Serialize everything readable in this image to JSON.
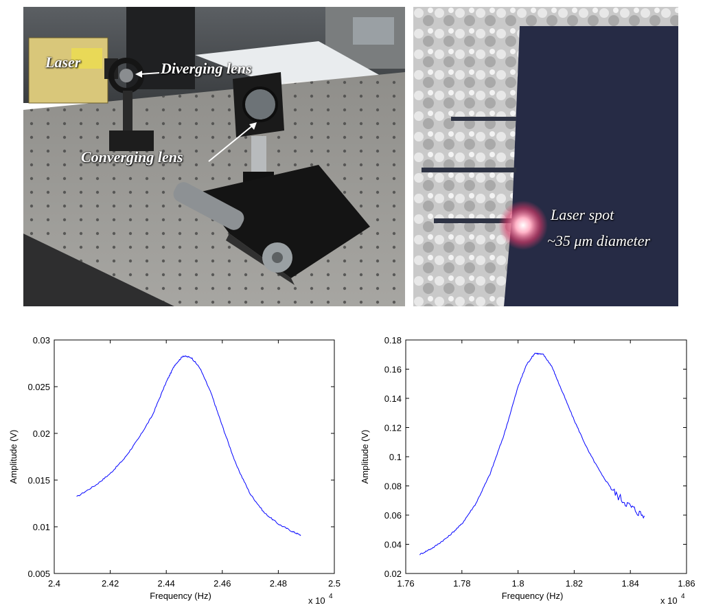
{
  "photos": {
    "left": {
      "captions": {
        "laser": "Laser",
        "diverging": "Diverging lens",
        "converging": "Converging lens"
      }
    },
    "right": {
      "captions": {
        "spot_line1": "Laser spot",
        "spot_line2": "~35 μm diameter"
      }
    }
  },
  "chart_data": [
    {
      "type": "line",
      "title": "",
      "xlabel": "Frequency (Hz)",
      "ylabel": "Amplitude (V)",
      "x_multiplier": "x 10",
      "x_exponent": "4",
      "xlim": [
        2.4,
        2.5
      ],
      "ylim": [
        0.005,
        0.03
      ],
      "xticks": [
        2.4,
        2.42,
        2.44,
        2.46,
        2.48,
        2.5
      ],
      "xtick_labels": [
        "2.4",
        "2.42",
        "2.44",
        "2.46",
        "2.48",
        "2.5"
      ],
      "yticks": [
        0.005,
        0.01,
        0.015,
        0.02,
        0.025,
        0.03
      ],
      "ytick_labels": [
        "0.005",
        "0.01",
        "0.015",
        "0.02",
        "0.025",
        "0.03"
      ],
      "color": "#0000ff",
      "grid": false,
      "series": [
        {
          "x": [
            2.408,
            2.415,
            2.42,
            2.425,
            2.43,
            2.435,
            2.44,
            2.443,
            2.446,
            2.449,
            2.452,
            2.456,
            2.46,
            2.465,
            2.47,
            2.475,
            2.48,
            2.485,
            2.488
          ],
          "y": [
            0.0132,
            0.0145,
            0.0157,
            0.0173,
            0.0194,
            0.0219,
            0.0255,
            0.0273,
            0.0283,
            0.0281,
            0.027,
            0.0243,
            0.0208,
            0.0166,
            0.0135,
            0.0115,
            0.0103,
            0.0095,
            0.0091
          ]
        }
      ]
    },
    {
      "type": "line",
      "title": "",
      "xlabel": "Frequency (Hz)",
      "ylabel": "Amplitude (V)",
      "x_multiplier": "x 10",
      "x_exponent": "4",
      "xlim": [
        1.76,
        1.86
      ],
      "ylim": [
        0.02,
        0.18
      ],
      "xticks": [
        1.76,
        1.78,
        1.8,
        1.82,
        1.84,
        1.86
      ],
      "xtick_labels": [
        "1.76",
        "1.78",
        "1.8",
        "1.82",
        "1.84",
        "1.86"
      ],
      "yticks": [
        0.02,
        0.04,
        0.06,
        0.08,
        0.1,
        0.12,
        0.14,
        0.16,
        0.18
      ],
      "ytick_labels": [
        "0.02",
        "0.04",
        "0.06",
        "0.08",
        "0.1",
        "0.12",
        "0.14",
        "0.16",
        "0.18"
      ],
      "color": "#0000ff",
      "grid": false,
      "series": [
        {
          "x": [
            1.765,
            1.77,
            1.775,
            1.78,
            1.785,
            1.79,
            1.795,
            1.8,
            1.803,
            1.806,
            1.809,
            1.812,
            1.815,
            1.82,
            1.825,
            1.83,
            1.835,
            1.84,
            1.845
          ],
          "y": [
            0.033,
            0.038,
            0.045,
            0.054,
            0.068,
            0.088,
            0.115,
            0.148,
            0.163,
            0.171,
            0.17,
            0.162,
            0.148,
            0.125,
            0.104,
            0.087,
            0.074,
            0.066,
            0.059
          ]
        }
      ]
    }
  ]
}
